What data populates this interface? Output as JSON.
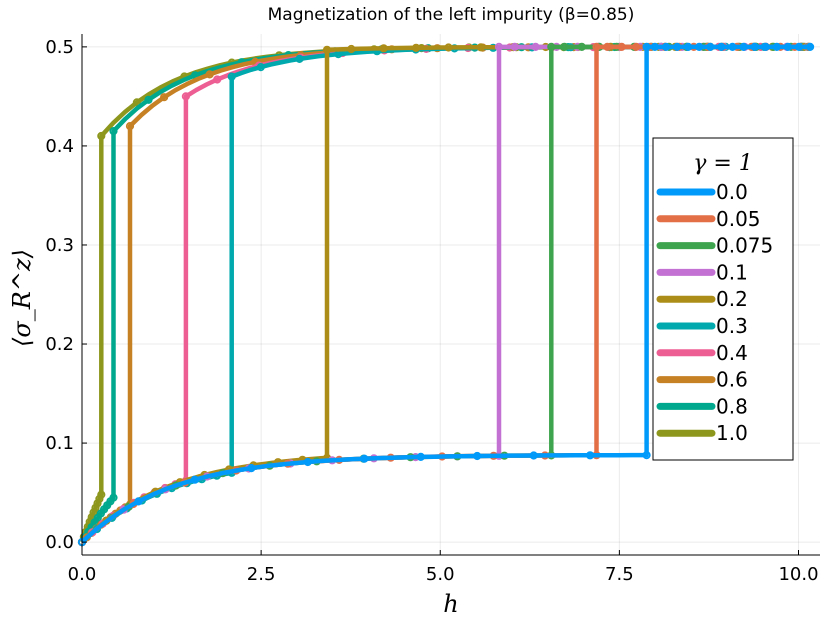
{
  "chart_data": {
    "type": "line",
    "title": "Magnetization of the left impurity (β=0.85)",
    "xlabel": "h",
    "ylabel": "⟨σ_R^z⟩",
    "xlim": [
      0,
      10.3
    ],
    "ylim": [
      -0.013,
      0.513
    ],
    "xticks": [
      0,
      2.5,
      5,
      7.5,
      10
    ],
    "xtick_labels": [
      "0.0",
      "2.5",
      "5.0",
      "7.5",
      "10.0"
    ],
    "yticks": [
      0,
      0.1,
      0.2,
      0.3,
      0.4,
      0.5
    ],
    "ytick_labels": [
      "0.0",
      "0.1",
      "0.2",
      "0.3",
      "0.4",
      "0.5"
    ],
    "grid": true,
    "legend_position": "right",
    "legend_title": "γ = 1",
    "series": [
      {
        "name": "0.0",
        "color": "#009AFA",
        "switch_h": 7.88,
        "low_end": 0.088,
        "high_start": 0.5
      },
      {
        "name": "0.05",
        "color": "#E36F47",
        "switch_h": 7.18,
        "low_end": 0.088,
        "high_start": 0.5
      },
      {
        "name": "0.075",
        "color": "#3EA44E",
        "switch_h": 6.55,
        "low_end": 0.088,
        "high_start": 0.5
      },
      {
        "name": "0.1",
        "color": "#C371D2",
        "switch_h": 5.82,
        "low_end": 0.088,
        "high_start": 0.5
      },
      {
        "name": "0.2",
        "color": "#AC8D18",
        "switch_h": 3.42,
        "low_end": 0.085,
        "high_start": 0.497
      },
      {
        "name": "0.3",
        "color": "#00A9AD",
        "switch_h": 2.09,
        "low_end": 0.07,
        "high_start": 0.47
      },
      {
        "name": "0.4",
        "color": "#ED5E93",
        "switch_h": 1.45,
        "low_end": 0.062,
        "high_start": 0.45
      },
      {
        "name": "0.6",
        "color": "#C68125",
        "switch_h": 0.67,
        "low_end": 0.038,
        "high_start": 0.42
      },
      {
        "name": "0.8",
        "color": "#00A98D",
        "switch_h": 0.44,
        "low_end": 0.045,
        "high_start": 0.415
      },
      {
        "name": "1.0",
        "color": "#8E971D",
        "switch_h": 0.27,
        "low_end": 0.048,
        "high_start": 0.41
      }
    ]
  }
}
